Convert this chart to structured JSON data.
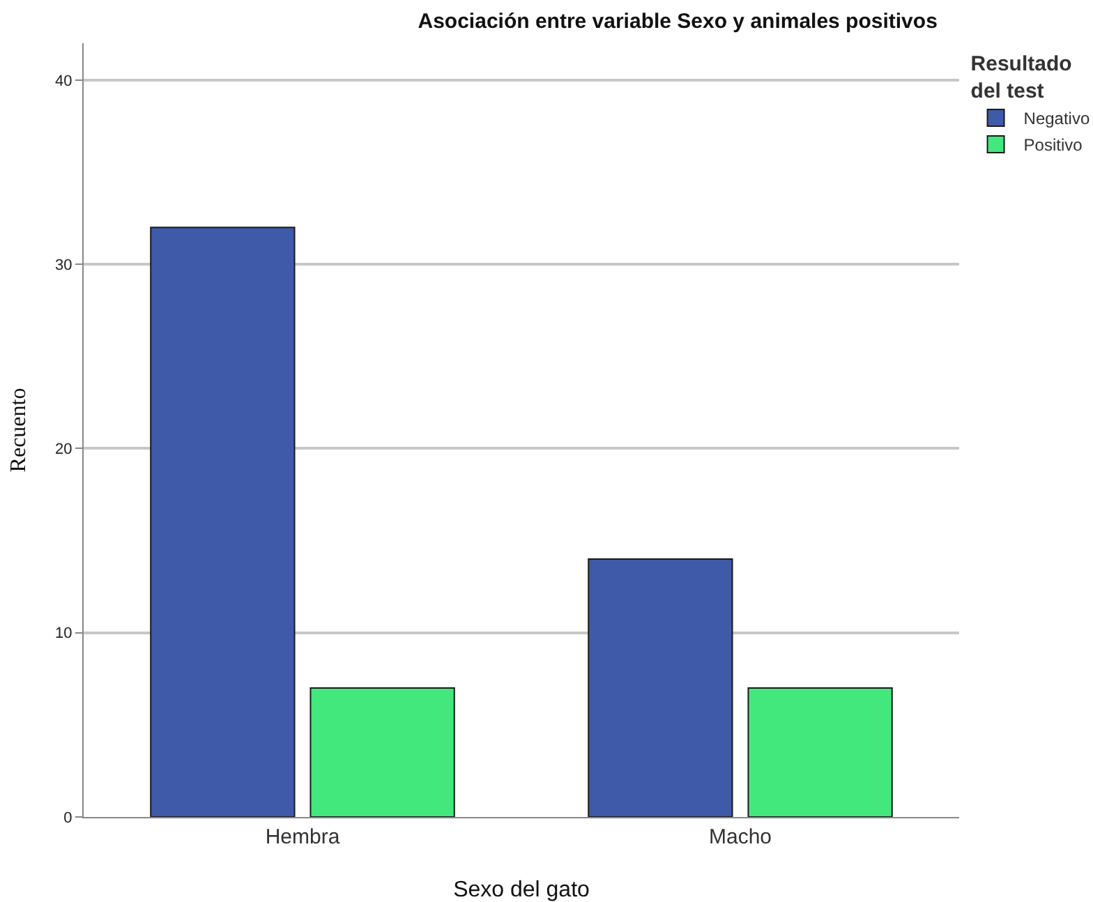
{
  "chart_data": {
    "type": "bar",
    "title": "Asociación entre variable Sexo y animales positivos",
    "xlabel": "Sexo del gato",
    "ylabel": "Recuento",
    "legend_title": "Resultado\ndel test",
    "categories": [
      "Hembra",
      "Macho"
    ],
    "series": [
      {
        "name": "Negativo",
        "color": "#3f5aa8",
        "values": [
          32,
          14
        ]
      },
      {
        "name": "Positivo",
        "color": "#42e87c",
        "values": [
          7,
          7
        ]
      }
    ],
    "ylim": [
      0,
      42
    ],
    "yticks": [
      0,
      10,
      20,
      30,
      40
    ],
    "grid": "y",
    "legend": "top right"
  }
}
